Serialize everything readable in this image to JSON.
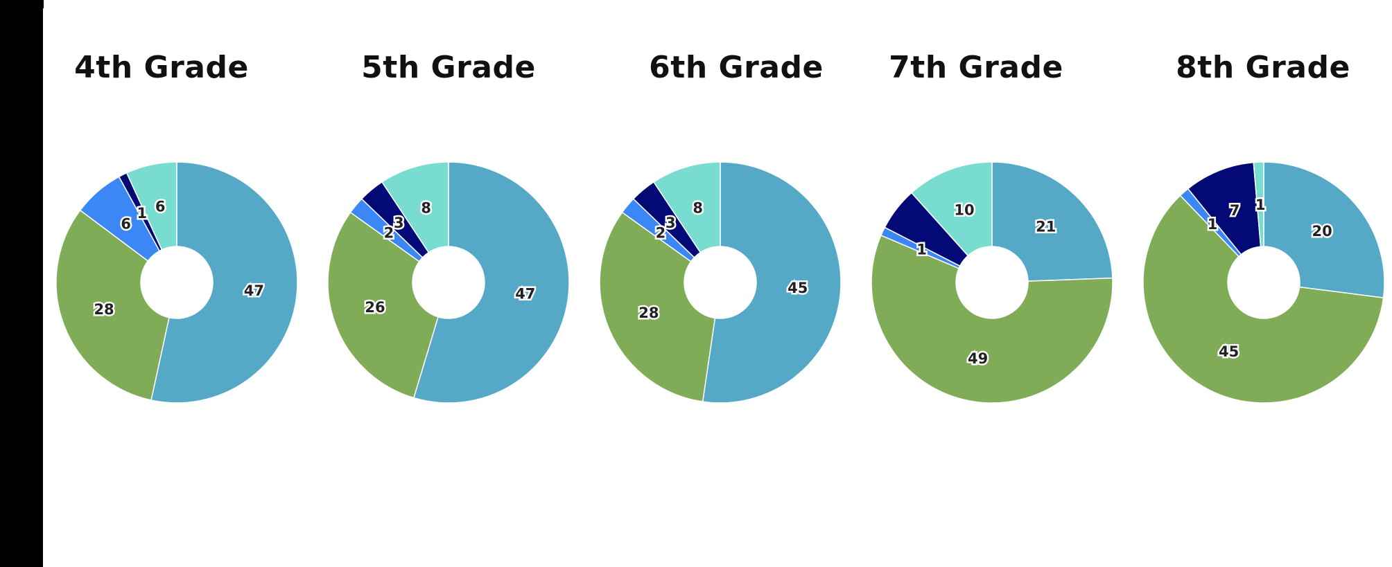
{
  "chart_data": [
    {
      "type": "pie",
      "title": "4th Grade",
      "slices": [
        {
          "value": 47,
          "label": "47",
          "color": "#55a9c7"
        },
        {
          "value": 28,
          "label": "28",
          "color": "#80ab57"
        },
        {
          "value": 6,
          "label": "6",
          "color": "#3b87f5"
        },
        {
          "value": 1,
          "label": "1",
          "color": "#030a75"
        },
        {
          "value": 6,
          "label": "6",
          "color": "#78ddd0"
        }
      ]
    },
    {
      "type": "pie",
      "title": "5th Grade",
      "slices": [
        {
          "value": 47,
          "label": "47",
          "color": "#55a9c7"
        },
        {
          "value": 26,
          "label": "26",
          "color": "#80ab57"
        },
        {
          "value": 2,
          "label": "2",
          "color": "#3b87f5"
        },
        {
          "value": 3,
          "label": "3",
          "color": "#030a75"
        },
        {
          "value": 8,
          "label": "8",
          "color": "#78ddd0"
        }
      ]
    },
    {
      "type": "pie",
      "title": "6th Grade",
      "slices": [
        {
          "value": 45,
          "label": "45",
          "color": "#55a9c7"
        },
        {
          "value": 28,
          "label": "28",
          "color": "#80ab57"
        },
        {
          "value": 2,
          "label": "2",
          "color": "#3b87f5"
        },
        {
          "value": 3,
          "label": "3",
          "color": "#030a75"
        },
        {
          "value": 8,
          "label": "8",
          "color": "#78ddd0"
        }
      ]
    },
    {
      "type": "pie",
      "title": "7th Grade",
      "slices": [
        {
          "value": 21,
          "label": "21",
          "color": "#55a9c7"
        },
        {
          "value": 49,
          "label": "49",
          "color": "#80ab57"
        },
        {
          "value": 1,
          "label": "1",
          "color": "#3b87f5"
        },
        {
          "value": 5,
          "label": "",
          "color": "#030a75"
        },
        {
          "value": 10,
          "label": "10",
          "color": "#78ddd0"
        }
      ]
    },
    {
      "type": "pie",
      "title": "8th Grade",
      "slices": [
        {
          "value": 20,
          "label": "20",
          "color": "#55a9c7"
        },
        {
          "value": 45,
          "label": "45",
          "color": "#80ab57"
        },
        {
          "value": 1,
          "label": "1",
          "color": "#3b87f5"
        },
        {
          "value": 7,
          "label": "7",
          "color": "#030a75"
        },
        {
          "value": 1,
          "label": "1",
          "color": "#78ddd0"
        }
      ]
    }
  ]
}
